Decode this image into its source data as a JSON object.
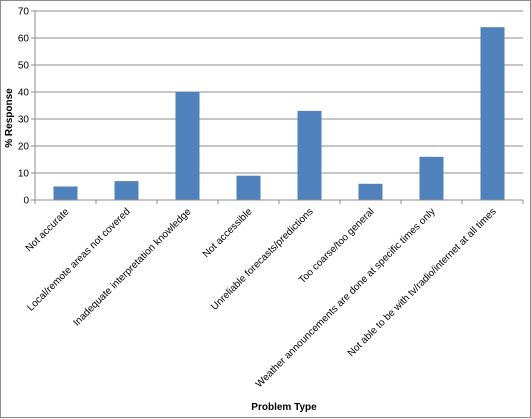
{
  "chart_data": {
    "type": "bar",
    "title": "",
    "xlabel": "Problem Type",
    "ylabel": "% Response",
    "ylim": [
      0,
      70
    ],
    "yticks": [
      0,
      10,
      20,
      30,
      40,
      50,
      60,
      70
    ],
    "grid": true,
    "legend": "none",
    "bar_color": "#4f81bd",
    "grid_color": "#8c8c8c",
    "categories": [
      "Not accurate",
      "Local/remote areas not covered",
      "Inadequate  interpretation knowledge",
      "Not accessible",
      "Unreliable forecasts/predictions",
      "Too coarse/too general",
      "Weather announcements  are done at specific times only",
      "Not able to be with tv/radio/internet at all times"
    ],
    "values": [
      5,
      7,
      40,
      9,
      33,
      6,
      16,
      64
    ]
  }
}
